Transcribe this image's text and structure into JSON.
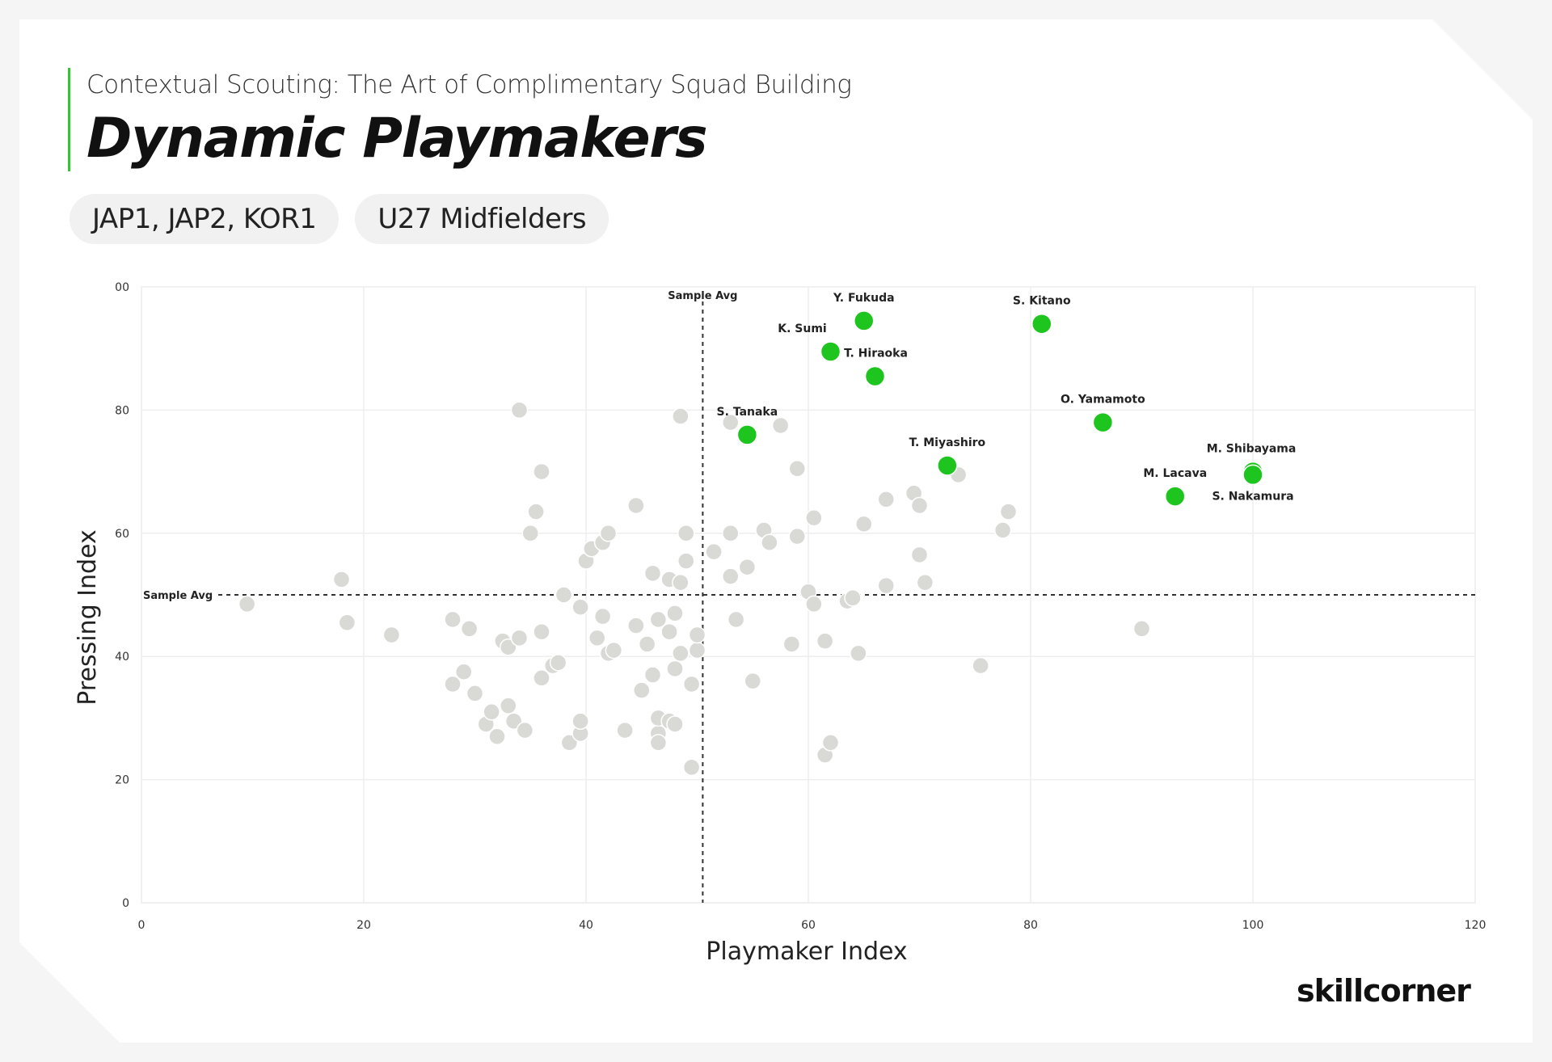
{
  "header": {
    "subtitle": "Contextual Scouting: The Art of Complimentary Squad Building",
    "title": "Dynamic Playmakers"
  },
  "filters": [
    "JAP1, JAP2, KOR1",
    "U27 Midfielders"
  ],
  "brand": {
    "logo_text": "SKILLCORNER"
  },
  "colors": {
    "highlight": "#1ec51e",
    "others": "#d9d9d6",
    "accent_bar": "#33c733"
  },
  "chart_data": {
    "type": "scatter",
    "xlabel": "Playmaker Index",
    "ylabel": "Pressing Index",
    "xlim": [
      0,
      120
    ],
    "ylim": [
      0,
      100
    ],
    "x_ticks": [
      0,
      20,
      40,
      60,
      80,
      100,
      120
    ],
    "y_ticks": [
      0,
      20,
      40,
      60,
      80
    ],
    "y_top_tick_label": "00",
    "grid": true,
    "reference_lines": [
      {
        "axis": "x",
        "value": 50.5,
        "label": "Sample Avg"
      },
      {
        "axis": "y",
        "value": 50,
        "label": "Sample Avg"
      }
    ],
    "highlighted": [
      {
        "name": "Y. Fukuda",
        "x": 65,
        "y": 94.5
      },
      {
        "name": "S. Kitano",
        "x": 81,
        "y": 94
      },
      {
        "name": "K. Sumi",
        "x": 62,
        "y": 89.5
      },
      {
        "name": "T. Hiraoka",
        "x": 66,
        "y": 85.5
      },
      {
        "name": "O. Yamamoto",
        "x": 86.5,
        "y": 78
      },
      {
        "name": "S. Tanaka",
        "x": 54.5,
        "y": 76
      },
      {
        "name": "T. Miyashiro",
        "x": 72.5,
        "y": 71
      },
      {
        "name": "M. Shibayama",
        "x": 100,
        "y": 70
      },
      {
        "name": "S. Nakamura",
        "x": 100,
        "y": 69.5
      },
      {
        "name": "M. Lacava",
        "x": 93,
        "y": 66
      }
    ],
    "others": [
      [
        9.5,
        48.5
      ],
      [
        18,
        52.5
      ],
      [
        18.5,
        45.5
      ],
      [
        22.5,
        43.5
      ],
      [
        28,
        46
      ],
      [
        28,
        35.5
      ],
      [
        29.5,
        44.5
      ],
      [
        29,
        37.5
      ],
      [
        30,
        34
      ],
      [
        31,
        29
      ],
      [
        31.5,
        31
      ],
      [
        32,
        27
      ],
      [
        32.5,
        42.5
      ],
      [
        33,
        41.5
      ],
      [
        33,
        32
      ],
      [
        34,
        43
      ],
      [
        33.5,
        29.5
      ],
      [
        34,
        80
      ],
      [
        34.5,
        28
      ],
      [
        35,
        60
      ],
      [
        35.5,
        63.5
      ],
      [
        36,
        70
      ],
      [
        36,
        44
      ],
      [
        36,
        36.5
      ],
      [
        37,
        38.5
      ],
      [
        37.5,
        39
      ],
      [
        38,
        50
      ],
      [
        38.5,
        26
      ],
      [
        39.5,
        27.5
      ],
      [
        39.5,
        29.5
      ],
      [
        39.5,
        48
      ],
      [
        40,
        55.5
      ],
      [
        40.5,
        57.5
      ],
      [
        41,
        43
      ],
      [
        41.5,
        58.5
      ],
      [
        41.5,
        46.5
      ],
      [
        42,
        60
      ],
      [
        42,
        40.5
      ],
      [
        42.5,
        41
      ],
      [
        43.5,
        28
      ],
      [
        44.5,
        45
      ],
      [
        44.5,
        64.5
      ],
      [
        45,
        34.5
      ],
      [
        45.5,
        42
      ],
      [
        46,
        53.5
      ],
      [
        46,
        37
      ],
      [
        46.5,
        27.5
      ],
      [
        46.5,
        26
      ],
      [
        46.5,
        46
      ],
      [
        46.5,
        30
      ],
      [
        47.5,
        29.5
      ],
      [
        47.5,
        44
      ],
      [
        47.5,
        52.5
      ],
      [
        48,
        29
      ],
      [
        48,
        38
      ],
      [
        48,
        47
      ],
      [
        48.5,
        40.5
      ],
      [
        48.5,
        52
      ],
      [
        48.5,
        79
      ],
      [
        49,
        55.5
      ],
      [
        49,
        60
      ],
      [
        49.5,
        35.5
      ],
      [
        49.5,
        22
      ],
      [
        50,
        41
      ],
      [
        50,
        43.5
      ],
      [
        51.5,
        57
      ],
      [
        53,
        78
      ],
      [
        53,
        53
      ],
      [
        53,
        60
      ],
      [
        53.5,
        46
      ],
      [
        54.5,
        54.5
      ],
      [
        55,
        36
      ],
      [
        56,
        60.5
      ],
      [
        56.5,
        58.5
      ],
      [
        57.5,
        77.5
      ],
      [
        58.5,
        42
      ],
      [
        59,
        70.5
      ],
      [
        59,
        59.5
      ],
      [
        60,
        50.5
      ],
      [
        60.5,
        62.5
      ],
      [
        60.5,
        48.5
      ],
      [
        61.5,
        24
      ],
      [
        61.5,
        42.5
      ],
      [
        62,
        26
      ],
      [
        63.5,
        49
      ],
      [
        64,
        49.5
      ],
      [
        64.5,
        40.5
      ],
      [
        65,
        61.5
      ],
      [
        67,
        65.5
      ],
      [
        67,
        51.5
      ],
      [
        69.5,
        66.5
      ],
      [
        70,
        56.5
      ],
      [
        70,
        64.5
      ],
      [
        70.5,
        52
      ],
      [
        73.5,
        69.5
      ],
      [
        75.5,
        38.5
      ],
      [
        77.5,
        60.5
      ],
      [
        78,
        63.5
      ],
      [
        90,
        44.5
      ]
    ]
  }
}
